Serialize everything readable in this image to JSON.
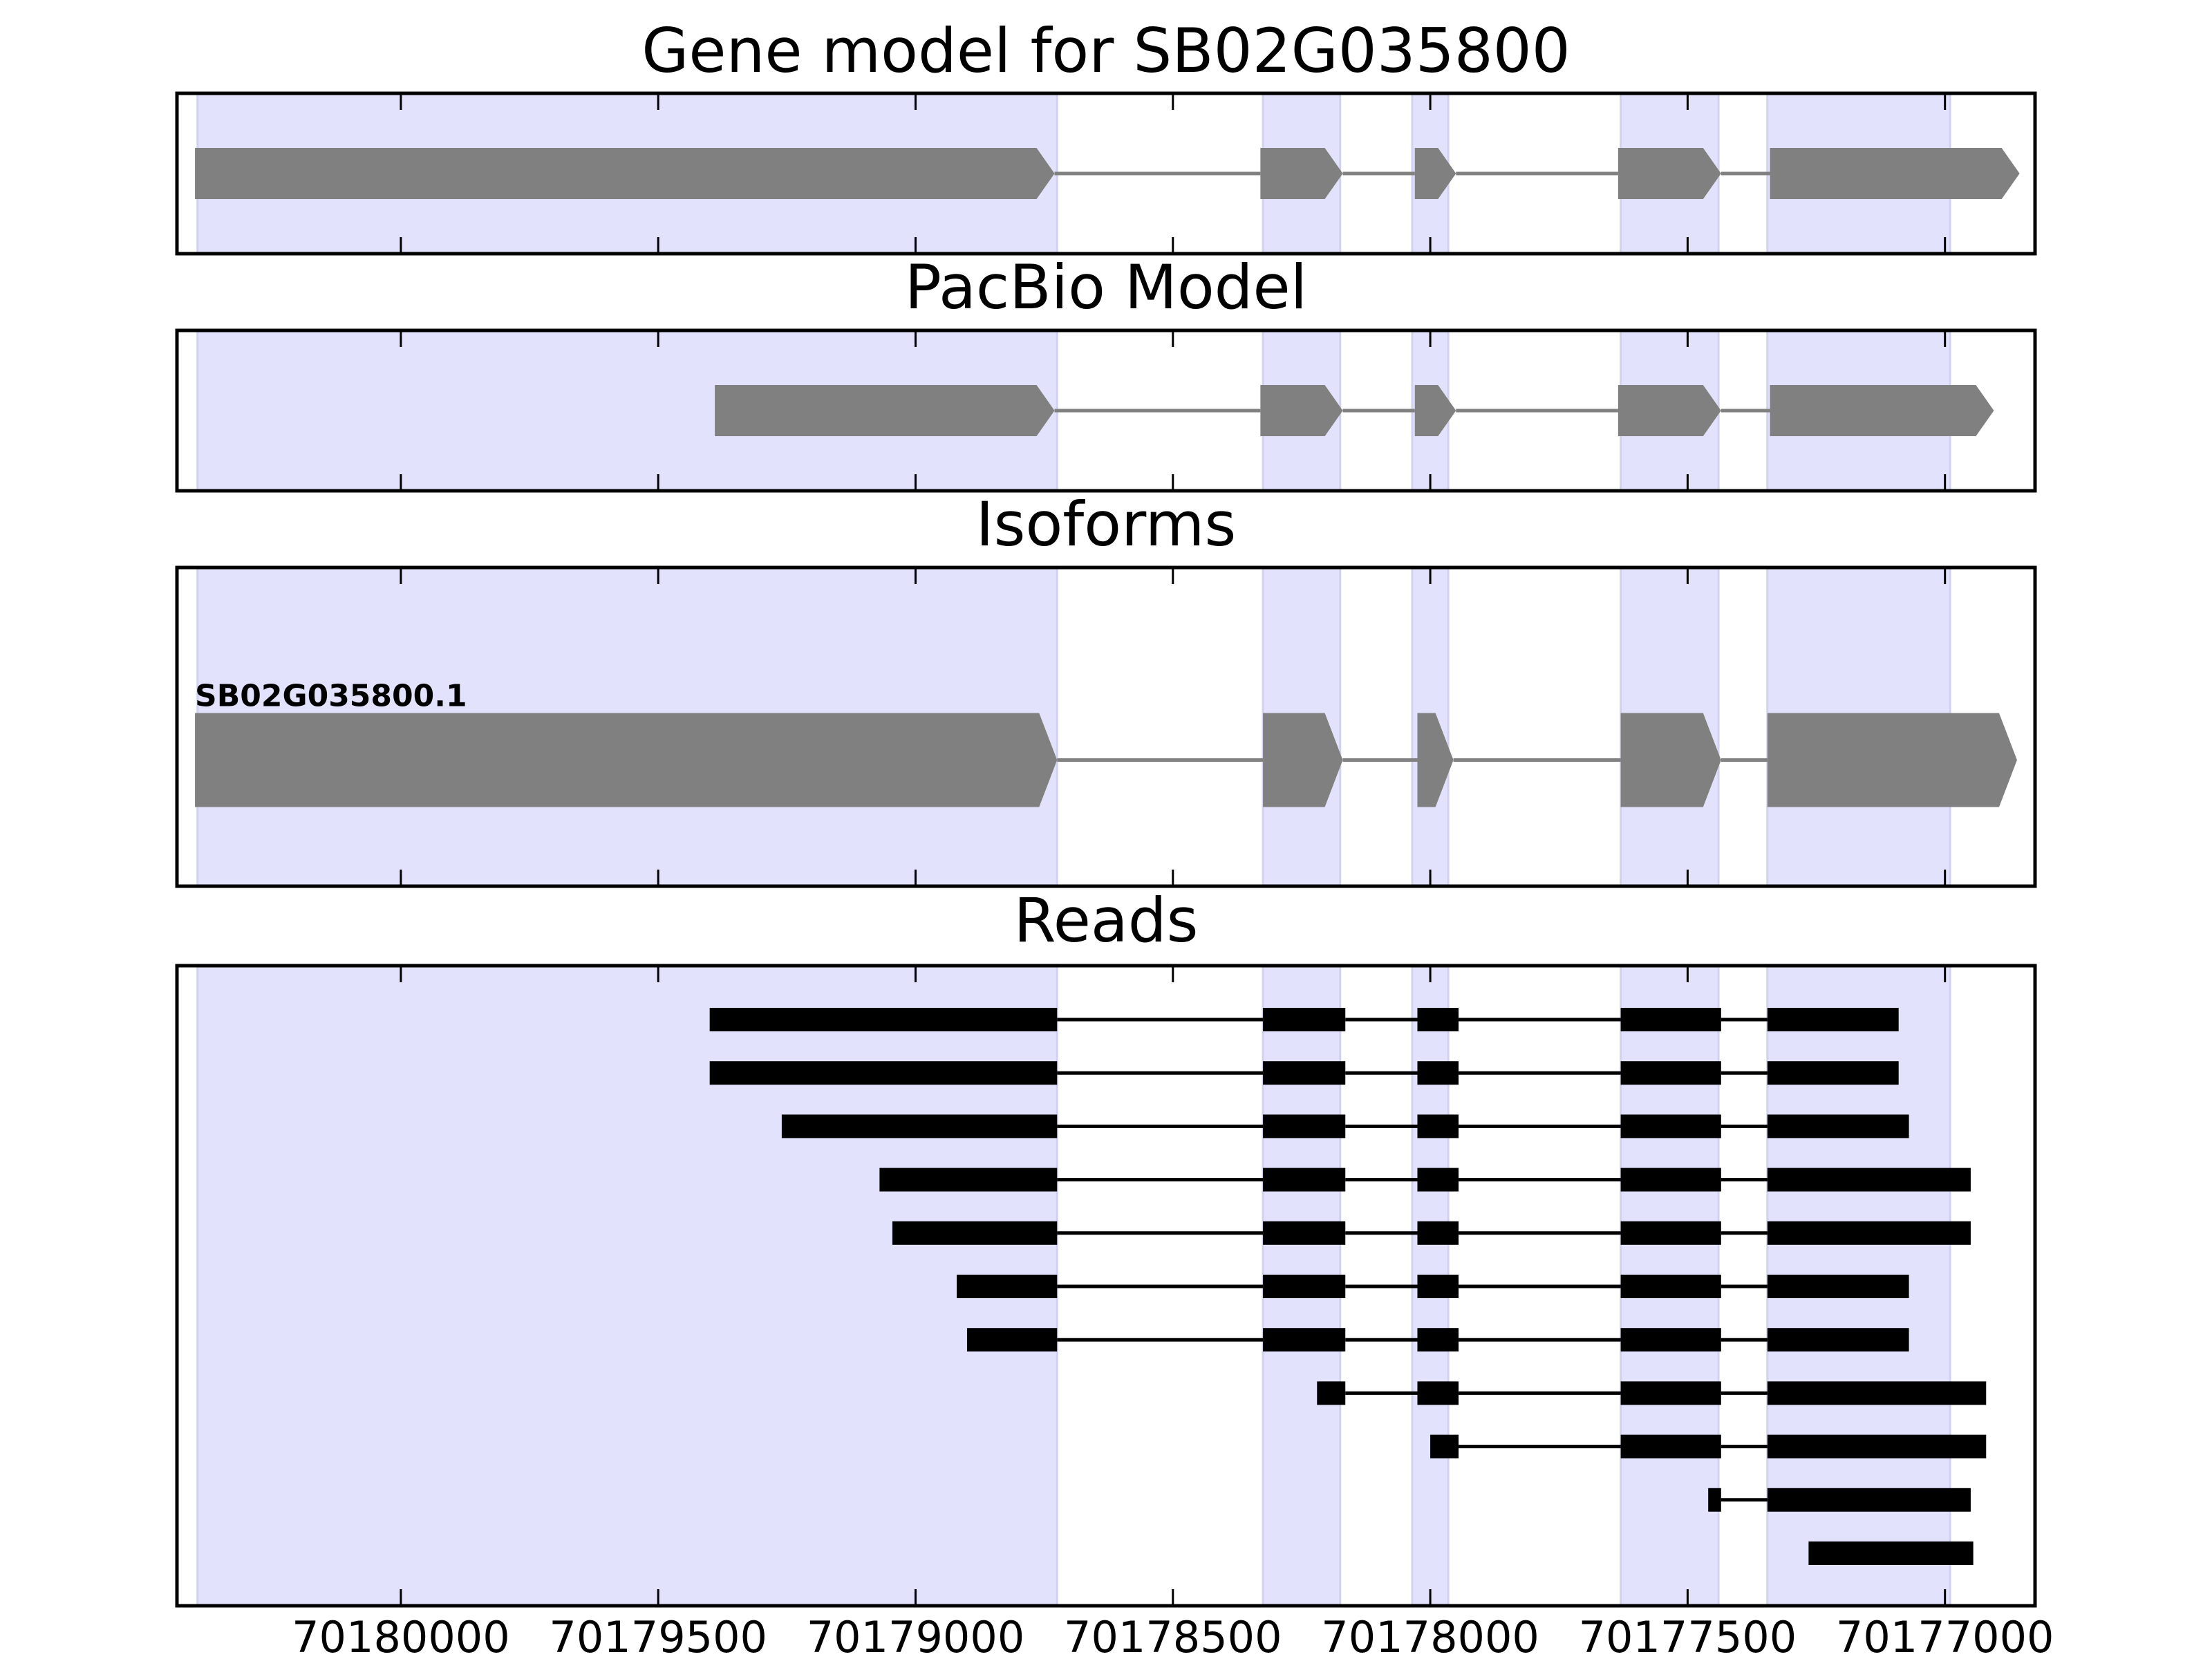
{
  "chart_data": {
    "type": "gene_track",
    "x_reversed": true,
    "xlim": [
      70180435,
      70176825
    ],
    "xticks": [
      {
        "value": 70180000,
        "label": "70180000"
      },
      {
        "value": 70179500,
        "label": "70179500"
      },
      {
        "value": 70179000,
        "label": "70179000"
      },
      {
        "value": 70178500,
        "label": "70178500"
      },
      {
        "value": 70178000,
        "label": "70178000"
      },
      {
        "value": 70177500,
        "label": "70177500"
      },
      {
        "value": 70177000,
        "label": "70177000"
      }
    ],
    "highlight_color": "#e2e2fc",
    "feature_color": "#808080",
    "read_color": "#000000",
    "exon_regions": [
      [
        70180395,
        70178725
      ],
      [
        70178325,
        70178175
      ],
      [
        70178035,
        70177965
      ],
      [
        70177630,
        70177440
      ],
      [
        70177345,
        70176990
      ]
    ],
    "panels": [
      {
        "title": "Gene model for SB02G035800",
        "kind": "model",
        "features": [
          {
            "exons": [
              [
                70180400,
                70178730
              ],
              [
                70178330,
                70178170
              ],
              [
                70178030,
                70177950
              ],
              [
                70177635,
                70177435
              ],
              [
                70177340,
                70176855
              ]
            ]
          }
        ]
      },
      {
        "title": "PacBio Model",
        "kind": "model",
        "features": [
          {
            "exons": [
              [
                70179390,
                70178730
              ],
              [
                70178330,
                70178170
              ],
              [
                70178030,
                70177950
              ],
              [
                70177635,
                70177435
              ],
              [
                70177340,
                70176905
              ]
            ]
          }
        ]
      },
      {
        "title": "Isoforms",
        "kind": "isoform",
        "features": [
          {
            "label": "SB02G035800.1",
            "exons": [
              [
                70180400,
                70178725
              ],
              [
                70178325,
                70178170
              ],
              [
                70178025,
                70177955
              ],
              [
                70177630,
                70177435
              ],
              [
                70177345,
                70176860
              ]
            ]
          }
        ]
      },
      {
        "title": "Reads",
        "kind": "reads",
        "features": [
          {
            "exons": [
              [
                70179400,
                70178725
              ],
              [
                70178325,
                70178165
              ],
              [
                70178025,
                70177945
              ],
              [
                70177630,
                70177435
              ],
              [
                70177345,
                70177090
              ]
            ]
          },
          {
            "exons": [
              [
                70179400,
                70178725
              ],
              [
                70178325,
                70178165
              ],
              [
                70178025,
                70177945
              ],
              [
                70177630,
                70177435
              ],
              [
                70177345,
                70177090
              ]
            ]
          },
          {
            "exons": [
              [
                70179260,
                70178725
              ],
              [
                70178325,
                70178165
              ],
              [
                70178025,
                70177945
              ],
              [
                70177630,
                70177435
              ],
              [
                70177345,
                70177070
              ]
            ]
          },
          {
            "exons": [
              [
                70179070,
                70178725
              ],
              [
                70178325,
                70178165
              ],
              [
                70178025,
                70177945
              ],
              [
                70177630,
                70177435
              ],
              [
                70177345,
                70176950
              ]
            ]
          },
          {
            "exons": [
              [
                70179045,
                70178725
              ],
              [
                70178325,
                70178165
              ],
              [
                70178025,
                70177945
              ],
              [
                70177630,
                70177435
              ],
              [
                70177345,
                70176950
              ]
            ]
          },
          {
            "exons": [
              [
                70178920,
                70178725
              ],
              [
                70178325,
                70178165
              ],
              [
                70178025,
                70177945
              ],
              [
                70177630,
                70177435
              ],
              [
                70177345,
                70177070
              ]
            ]
          },
          {
            "exons": [
              [
                70178900,
                70178725
              ],
              [
                70178325,
                70178165
              ],
              [
                70178025,
                70177945
              ],
              [
                70177630,
                70177435
              ],
              [
                70177345,
                70177070
              ]
            ]
          },
          {
            "exons": [
              [
                70178220,
                70178165
              ],
              [
                70178025,
                70177945
              ],
              [
                70177630,
                70177435
              ],
              [
                70177345,
                70176920
              ]
            ]
          },
          {
            "exons": [
              [
                70178000,
                70177945
              ],
              [
                70177630,
                70177435
              ],
              [
                70177345,
                70176920
              ]
            ]
          },
          {
            "exons": [
              [
                70177460,
                70177435
              ],
              [
                70177345,
                70176950
              ]
            ]
          },
          {
            "exons": [
              [
                70177265,
                70176945
              ]
            ]
          }
        ]
      }
    ]
  }
}
